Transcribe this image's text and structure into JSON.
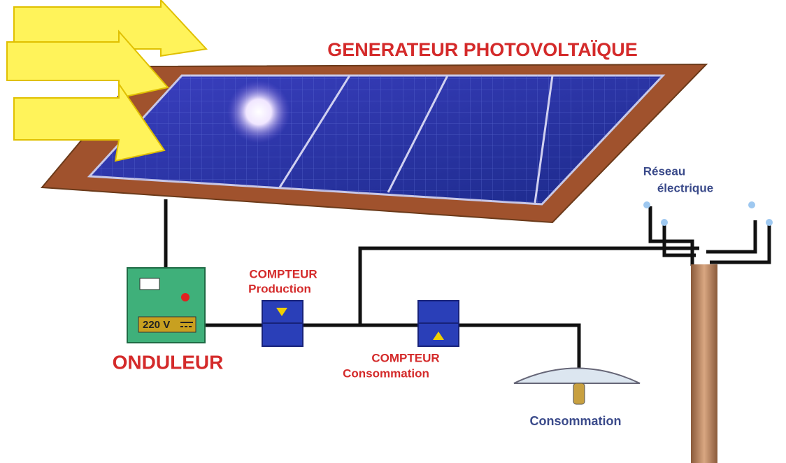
{
  "title": "GENERATEUR PHOTOVOLTAÏQUE",
  "grid_label": {
    "line1": "Réseau",
    "line2": "électrique"
  },
  "production_meter": {
    "line1": "COMPTEUR",
    "line2": "Production"
  },
  "inverter": {
    "label": "ONDULEUR",
    "display": "220 V"
  },
  "consumption_meter": {
    "line1": "COMPTEUR",
    "line2": "Consommation"
  },
  "load": {
    "label": "Consommation"
  }
}
